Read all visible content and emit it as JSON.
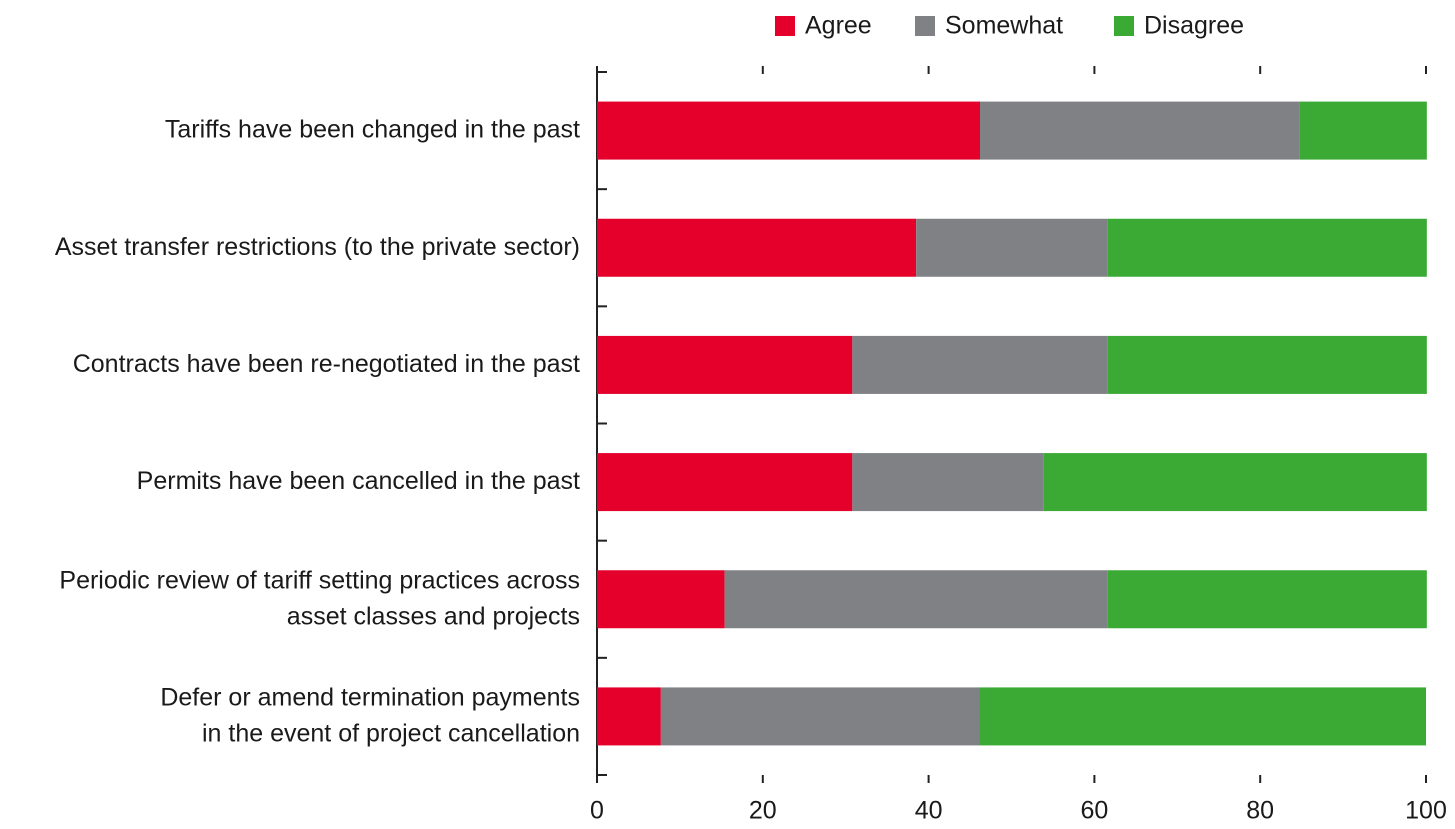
{
  "chart_data": {
    "type": "stacked-bar-horizontal",
    "categories": [
      [
        "Tariffs have been changed in the past"
      ],
      [
        "Asset transfer restrictions (to the private sector)"
      ],
      [
        "Contracts have been re-negotiated in the past"
      ],
      [
        "Permits have been cancelled in the past"
      ],
      [
        "Periodic review of tariff setting practices across",
        "asset classes and projects"
      ],
      [
        "Defer or amend termination payments",
        "in the event of project cancellation"
      ]
    ],
    "series": [
      {
        "name": "Agree",
        "color": "#e4002b",
        "values": [
          46.2,
          38.5,
          30.8,
          30.8,
          15.4,
          7.7
        ]
      },
      {
        "name": "Somewhat",
        "color": "#808184",
        "values": [
          38.5,
          23.1,
          30.8,
          23.1,
          46.2,
          38.5
        ]
      },
      {
        "name": "Disagree",
        "color": "#3aaa35",
        "values": [
          15.4,
          38.5,
          38.5,
          46.2,
          38.5,
          53.8
        ]
      }
    ],
    "xlim": [
      0,
      100
    ],
    "xticks": [
      0,
      20,
      40,
      60,
      80,
      100
    ],
    "legend": "top"
  }
}
